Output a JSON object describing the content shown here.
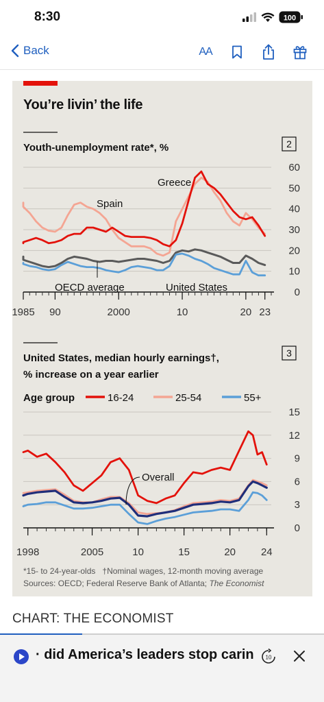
{
  "status": {
    "time": "8:30",
    "battery": "100"
  },
  "nav": {
    "back_label": "Back",
    "text_size_label": "AA"
  },
  "card": {
    "title": "You’re livin’ the life",
    "footnote_1": "*15- to 24-year-olds",
    "footnote_2": "†Nominal wages, 12-month moving average",
    "sources_prefix": "Sources: OECD; Federal Reserve Bank of Atlanta; ",
    "sources_italic": "The Economist"
  },
  "credit": "CHART: THE ECONOMIST",
  "audio": {
    "title": "· did America’s leaders stop caring",
    "skip_label": "10"
  },
  "colors": {
    "red": "#e3120b",
    "salmon": "#f4a593",
    "blue": "#5b9fd8",
    "navy": "#1f2e7a",
    "grey": "#5a5a5a",
    "accent": "#1f5fbf"
  },
  "chart_data": [
    {
      "type": "line",
      "number": "2",
      "title": "Youth-unemployment rate*, %",
      "xlim": [
        1985,
        2024
      ],
      "ylim": [
        0,
        60
      ],
      "yticks": [
        0,
        10,
        20,
        30,
        40,
        50,
        60
      ],
      "xtick_labels": [
        {
          "x": 1985,
          "label": "1985"
        },
        {
          "x": 1990,
          "label": "90"
        },
        {
          "x": 2000,
          "label": "2000"
        },
        {
          "x": 2010,
          "label": "10"
        },
        {
          "x": 2020,
          "label": "20"
        },
        {
          "x": 2023,
          "label": "23"
        }
      ],
      "series": [
        {
          "name": "Greece",
          "color": "#e3120b",
          "x": [
            1983,
            1985,
            1986,
            1987,
            1988,
            1989,
            1990,
            1991,
            1992,
            1993,
            1994,
            1995,
            1996,
            1997,
            1998,
            1999,
            2000,
            2001,
            2002,
            2003,
            2004,
            2005,
            2006,
            2007,
            2008,
            2009,
            2010,
            2011,
            2012,
            2013,
            2014,
            2015,
            2016,
            2017,
            2018,
            2019,
            2020,
            2021,
            2022,
            2023
          ],
          "y": [
            23.5,
            24,
            25,
            26,
            25,
            23.5,
            24,
            25,
            27,
            28,
            28,
            31,
            31,
            30,
            29,
            31,
            29,
            27,
            26.5,
            26.5,
            26.5,
            26,
            25,
            23,
            22,
            25,
            33,
            44,
            55,
            58,
            52,
            50,
            47,
            43,
            39,
            36,
            35,
            36,
            32,
            27
          ]
        },
        {
          "name": "Spain",
          "color": "#f4a593",
          "x": [
            1983,
            1985,
            1986,
            1987,
            1988,
            1989,
            1990,
            1991,
            1992,
            1993,
            1994,
            1995,
            1996,
            1997,
            1998,
            1999,
            2000,
            2001,
            2002,
            2003,
            2004,
            2005,
            2006,
            2007,
            2008,
            2009,
            2010,
            2011,
            2012,
            2013,
            2014,
            2015,
            2016,
            2017,
            2018,
            2019,
            2020,
            2021,
            2022,
            2023
          ],
          "y": [
            43,
            41,
            38,
            34,
            31,
            29.5,
            29,
            31,
            37,
            42,
            43,
            41,
            40,
            38,
            35,
            30,
            26,
            24,
            22,
            22,
            22,
            21,
            18.5,
            17.5,
            19,
            34,
            40,
            46,
            52,
            55,
            53,
            48,
            44,
            38,
            34,
            32,
            38,
            35,
            31,
            28
          ]
        },
        {
          "name": "OECD average",
          "color": "#5a5a5a",
          "x": [
            1983,
            1985,
            1986,
            1987,
            1988,
            1989,
            1990,
            1991,
            1992,
            1993,
            1994,
            1995,
            1996,
            1997,
            1998,
            1999,
            2000,
            2001,
            2002,
            2003,
            2004,
            2005,
            2006,
            2007,
            2008,
            2009,
            2010,
            2011,
            2012,
            2013,
            2014,
            2015,
            2016,
            2017,
            2018,
            2019,
            2020,
            2021,
            2022,
            2023
          ],
          "y": [
            17,
            15.5,
            14.5,
            13.5,
            12.5,
            12,
            12.5,
            14,
            16,
            17,
            16.5,
            16,
            15,
            14.5,
            15,
            15,
            14.5,
            15,
            15.5,
            16,
            16,
            15.5,
            15,
            14,
            15,
            19,
            20,
            19.5,
            20.5,
            20,
            19,
            18,
            17,
            15.5,
            14,
            14,
            17.5,
            16,
            14,
            13
          ]
        },
        {
          "name": "United States",
          "color": "#5b9fd8",
          "x": [
            1983,
            1985,
            1986,
            1987,
            1988,
            1989,
            1990,
            1991,
            1992,
            1993,
            1994,
            1995,
            1996,
            1997,
            1998,
            1999,
            2000,
            2001,
            2002,
            2003,
            2004,
            2005,
            2006,
            2007,
            2008,
            2009,
            2010,
            2011,
            2012,
            2013,
            2014,
            2015,
            2016,
            2017,
            2018,
            2019,
            2020,
            2021,
            2022,
            2023
          ],
          "y": [
            14,
            13.5,
            12.5,
            12,
            11,
            10.5,
            11,
            13,
            14.5,
            13.5,
            12.5,
            12,
            12,
            11.5,
            10.5,
            10,
            9.5,
            10.5,
            12,
            12.5,
            12,
            11.5,
            10.5,
            10.5,
            12.5,
            18,
            18.5,
            17.5,
            16,
            15,
            13.5,
            11.5,
            10.5,
            9.5,
            8.5,
            8.5,
            15,
            9.5,
            8,
            8
          ]
        }
      ],
      "annotations": [
        "Greece",
        "Spain",
        "OECD average",
        "United States"
      ]
    },
    {
      "type": "line",
      "number": "3",
      "title_line1": "United States, median hourly earnings†,",
      "title_line2": "% increase on a year earlier",
      "legend_title": "Age group",
      "xlim": [
        1997.5,
        2024.5
      ],
      "ylim": [
        0,
        15
      ],
      "yticks": [
        0,
        3,
        6,
        9,
        12,
        15
      ],
      "xtick_labels": [
        {
          "x": 1998,
          "label": "1998"
        },
        {
          "x": 2005,
          "label": "2005"
        },
        {
          "x": 2010,
          "label": "10"
        },
        {
          "x": 2015,
          "label": "15"
        },
        {
          "x": 2020,
          "label": "20"
        },
        {
          "x": 2024,
          "label": "24"
        }
      ],
      "series": [
        {
          "name": "16-24",
          "color": "#e3120b",
          "x": [
            1997.5,
            1998,
            1999,
            2000,
            2001,
            2002,
            2003,
            2004,
            2005,
            2006,
            2007,
            2008,
            2009,
            2010,
            2011,
            2012,
            2013,
            2014,
            2015,
            2016,
            2017,
            2018,
            2019,
            2020,
            2021,
            2022,
            2022.5,
            2023,
            2023.5,
            2024
          ],
          "y": [
            9.8,
            10,
            9.2,
            9.6,
            8.5,
            7.2,
            5.5,
            4.8,
            5.8,
            6.8,
            8.5,
            9,
            7.5,
            4.2,
            3.5,
            3.2,
            3.8,
            4.2,
            5.8,
            7.2,
            7,
            7.5,
            7.8,
            7.5,
            10,
            12.5,
            12,
            9.5,
            9.8,
            8.2
          ]
        },
        {
          "name": "25-54",
          "color": "#f4a593",
          "x": [
            1997.5,
            1998,
            1999,
            2000,
            2001,
            2002,
            2003,
            2004,
            2005,
            2006,
            2007,
            2008,
            2009,
            2010,
            2011,
            2012,
            2013,
            2014,
            2015,
            2016,
            2017,
            2018,
            2019,
            2020,
            2021,
            2022,
            2022.5,
            2023,
            2023.5,
            2024
          ],
          "y": [
            4.5,
            4.6,
            4.8,
            4.9,
            5,
            4.3,
            3.5,
            3.3,
            3.3,
            3.7,
            4,
            4,
            3.2,
            2,
            1.8,
            1.9,
            2,
            2.3,
            2.8,
            3.2,
            3.3,
            3.4,
            3.6,
            3.5,
            3.8,
            5.5,
            6.2,
            6,
            5.8,
            5.5
          ]
        },
        {
          "name": "55+",
          "color": "#5b9fd8",
          "x": [
            1997.5,
            1998,
            1999,
            2000,
            2001,
            2002,
            2003,
            2004,
            2005,
            2006,
            2007,
            2008,
            2009,
            2010,
            2011,
            2012,
            2013,
            2014,
            2015,
            2016,
            2017,
            2018,
            2019,
            2020,
            2021,
            2022,
            2022.5,
            2023,
            2023.5,
            2024
          ],
          "y": [
            2.8,
            3,
            3.1,
            3.3,
            3.3,
            2.9,
            2.5,
            2.5,
            2.6,
            2.8,
            3,
            3,
            1.8,
            0.7,
            0.5,
            0.9,
            1.2,
            1.4,
            1.7,
            2,
            2.1,
            2.2,
            2.4,
            2.4,
            2.2,
            3.6,
            4.6,
            4.5,
            4.2,
            3.6
          ]
        },
        {
          "name": "Overall",
          "color": "#1f2e7a",
          "x": [
            1997.5,
            1998,
            1999,
            2000,
            2001,
            2002,
            2003,
            2004,
            2005,
            2006,
            2007,
            2008,
            2009,
            2010,
            2011,
            2012,
            2013,
            2014,
            2015,
            2016,
            2017,
            2018,
            2019,
            2020,
            2021,
            2022,
            2022.5,
            2023,
            2023.5,
            2024
          ],
          "y": [
            4.2,
            4.4,
            4.6,
            4.7,
            4.8,
            4,
            3.3,
            3.2,
            3.3,
            3.5,
            3.8,
            3.9,
            3,
            1.6,
            1.5,
            1.8,
            2,
            2.2,
            2.6,
            3,
            3.1,
            3.2,
            3.4,
            3.3,
            3.6,
            5.4,
            6,
            5.8,
            5.5,
            5.2
          ]
        }
      ],
      "annotations": [
        "Overall"
      ]
    }
  ]
}
